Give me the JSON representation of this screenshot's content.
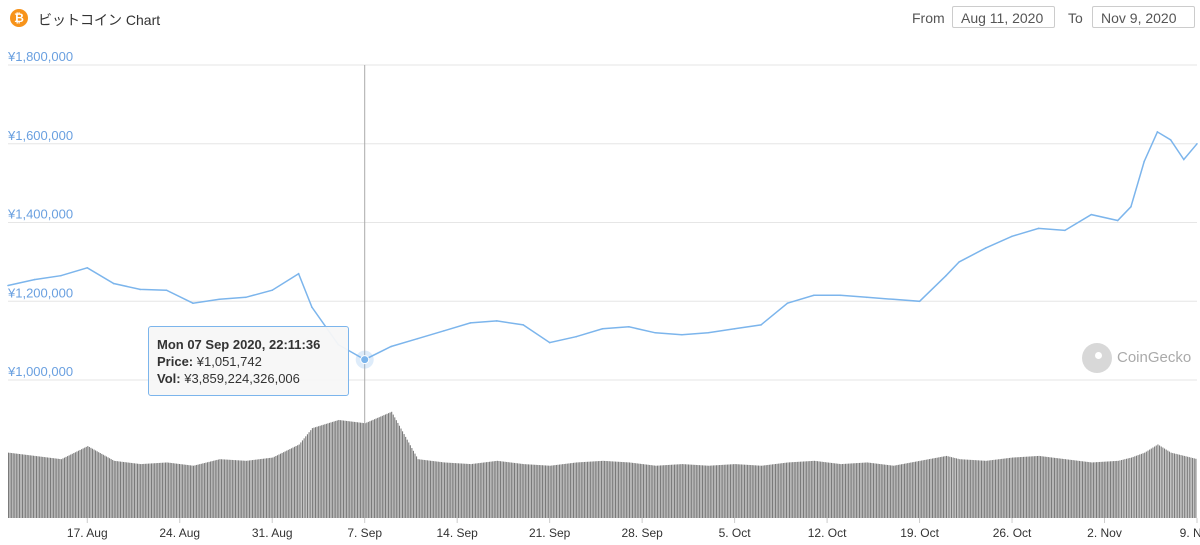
{
  "header": {
    "coin_icon": "bitcoin-icon",
    "icon_glyph": "₿",
    "title": "ビットコイン Chart",
    "from_label": "From",
    "from_value": "Aug 11, 2020",
    "to_label": "To",
    "to_value": "Nov 9, 2020"
  },
  "tooltip": {
    "date": "Mon 07 Sep 2020, 22:11:36",
    "price_label": "Price:",
    "price_value": "¥1,051,742",
    "vol_label": "Vol:",
    "vol_value": "¥3,859,224,326,006"
  },
  "watermark": {
    "icon": "coingecko-icon",
    "text": "CoinGecko"
  },
  "colors": {
    "price_line": "#7cb5ec",
    "volume": "#7a7a7a",
    "grid": "#e6e6e6",
    "y_labels": "#6aa0e0",
    "bitcoin": "#f7931a"
  },
  "chart_data": {
    "type": "line",
    "title": "ビットコイン Chart",
    "x": [
      "2020-08-11",
      "2020-08-13",
      "2020-08-15",
      "2020-08-17",
      "2020-08-19",
      "2020-08-21",
      "2020-08-23",
      "2020-08-25",
      "2020-08-27",
      "2020-08-29",
      "2020-08-31",
      "2020-09-02",
      "2020-09-03",
      "2020-09-05",
      "2020-09-07",
      "2020-09-09",
      "2020-09-11",
      "2020-09-13",
      "2020-09-15",
      "2020-09-17",
      "2020-09-19",
      "2020-09-21",
      "2020-09-23",
      "2020-09-25",
      "2020-09-27",
      "2020-09-29",
      "2020-10-01",
      "2020-10-03",
      "2020-10-05",
      "2020-10-07",
      "2020-10-09",
      "2020-10-11",
      "2020-10-13",
      "2020-10-15",
      "2020-10-17",
      "2020-10-19",
      "2020-10-21",
      "2020-10-22",
      "2020-10-24",
      "2020-10-26",
      "2020-10-28",
      "2020-10-30",
      "2020-11-01",
      "2020-11-03",
      "2020-11-04",
      "2020-11-05",
      "2020-11-06",
      "2020-11-07",
      "2020-11-08",
      "2020-11-09"
    ],
    "series": [
      {
        "values": [
          1240000,
          1255000,
          1265000,
          1285000,
          1245000,
          1230000,
          1228000,
          1195000,
          1205000,
          1210000,
          1228000,
          1270000,
          1185000,
          1090000,
          1051742,
          1085000,
          1105000,
          1125000,
          1145000,
          1150000,
          1140000,
          1095000,
          1110000,
          1130000,
          1135000,
          1120000,
          1115000,
          1120000,
          1130000,
          1140000,
          1195000,
          1215000,
          1215000,
          1210000,
          1205000,
          1200000,
          1265000,
          1300000,
          1335000,
          1365000,
          1385000,
          1380000,
          1420000,
          1405000,
          1440000,
          1555000,
          1630000,
          1610000,
          1560000,
          1600000
        ]
      },
      {
        "values": [
          4.0,
          3.8,
          3.6,
          4.4,
          3.5,
          3.3,
          3.4,
          3.2,
          3.6,
          3.5,
          3.7,
          4.5,
          5.5,
          6.0,
          5.8,
          6.5,
          3.6,
          3.4,
          3.3,
          3.5,
          3.3,
          3.2,
          3.4,
          3.5,
          3.4,
          3.2,
          3.3,
          3.2,
          3.3,
          3.2,
          3.4,
          3.5,
          3.3,
          3.4,
          3.2,
          3.5,
          3.8,
          3.6,
          3.5,
          3.7,
          3.8,
          3.6,
          3.4,
          3.5,
          3.7,
          4.0,
          4.5,
          4.0,
          3.8,
          3.6
        ]
      }
    ],
    "ylim": [
      1000000,
      1800000
    ],
    "yticks": [
      "¥1,000,000",
      "¥1,200,000",
      "¥1,400,000",
      "¥1,600,000",
      "¥1,800,000"
    ],
    "ytick_values": [
      1000000,
      1200000,
      1400000,
      1600000,
      1800000
    ],
    "xticks": [
      "17. Aug",
      "24. Aug",
      "31. Aug",
      "7. Sep",
      "14. Sep",
      "21. Sep",
      "28. Sep",
      "5. Oct",
      "12. Oct",
      "19. Oct",
      "26. Oct",
      "2. Nov",
      "9. Nov"
    ],
    "xtick_dates": [
      "2020-08-17",
      "2020-08-24",
      "2020-08-31",
      "2020-09-07",
      "2020-09-14",
      "2020-09-21",
      "2020-09-28",
      "2020-10-05",
      "2020-10-12",
      "2020-10-19",
      "2020-10-26",
      "2020-11-02",
      "2020-11-09"
    ],
    "x_start": "2020-08-11",
    "x_end": "2020-11-09",
    "highlight_date": "2020-09-07",
    "grid": true,
    "legend": "none"
  }
}
